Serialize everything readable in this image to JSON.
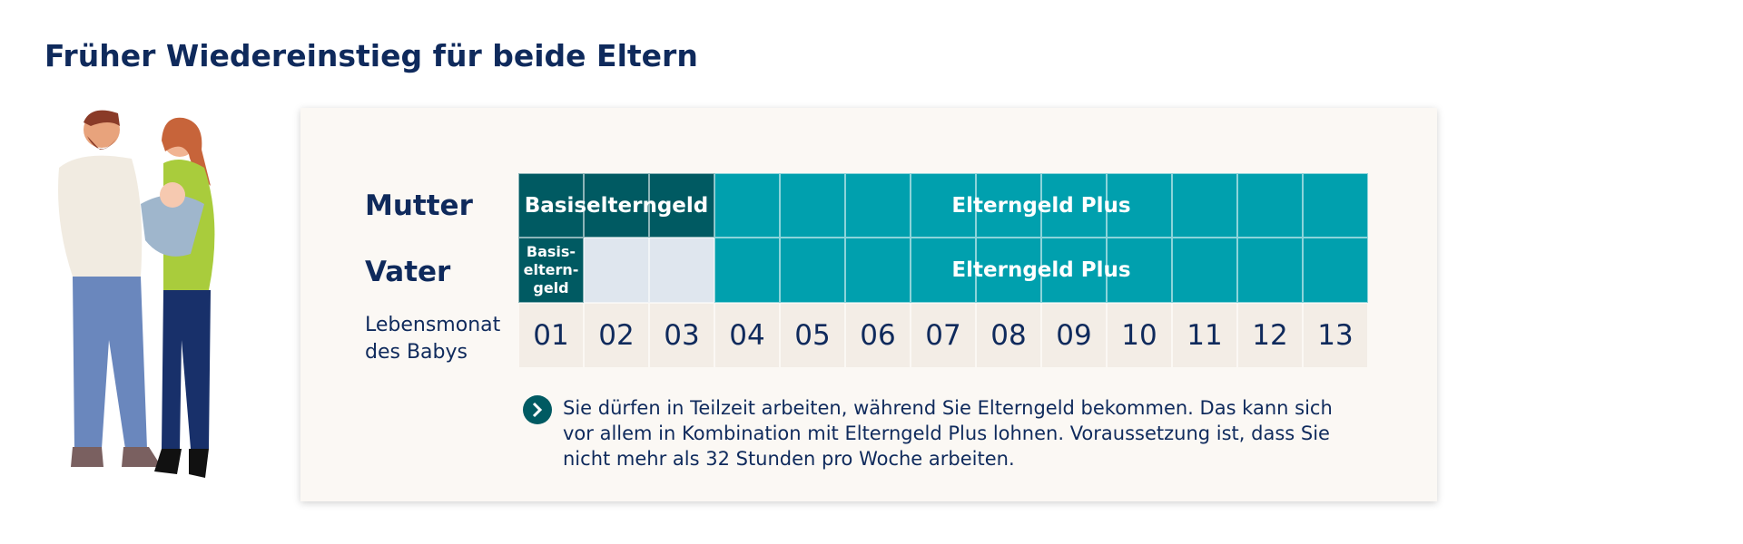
{
  "header": {
    "title": "Früher Wiedereinstieg für beide Eltern"
  },
  "table": {
    "rows": [
      {
        "label": "Mutter",
        "segments": [
          {
            "label": "Basiselterngeld"
          },
          {
            "label": "Elterngeld Plus"
          }
        ]
      },
      {
        "label": "Vater",
        "segments": [
          {
            "lines": [
              "Basis-",
              "eltern-",
              "geld"
            ]
          },
          {
            "label": "Elterngeld Plus"
          }
        ]
      }
    ],
    "months_label": [
      "Lebensmonat",
      "des Babys"
    ],
    "months": [
      "01",
      "02",
      "03",
      "04",
      "05",
      "06",
      "07",
      "08",
      "09",
      "10",
      "11",
      "12",
      "13"
    ]
  },
  "note": "Sie dürfen in Teilzeit arbeiten, während Sie Elterngeld bekommen. Das kann sich vor allem in Kombination mit Elterngeld Plus lohnen. Voraussetzung ist, dass Sie nicht mehr als 32 Stunden pro Woche arbeiten."
}
